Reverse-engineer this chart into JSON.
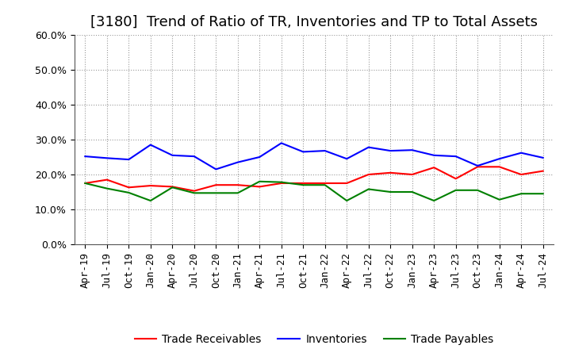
{
  "title": "[3180]  Trend of Ratio of TR, Inventories and TP to Total Assets",
  "x_labels": [
    "Apr-19",
    "Jul-19",
    "Oct-19",
    "Jan-20",
    "Apr-20",
    "Jul-20",
    "Oct-20",
    "Jan-21",
    "Apr-21",
    "Jul-21",
    "Oct-21",
    "Jan-22",
    "Apr-22",
    "Jul-22",
    "Oct-22",
    "Jan-23",
    "Apr-23",
    "Jul-23",
    "Oct-23",
    "Jan-24",
    "Apr-24",
    "Jul-24"
  ],
  "trade_receivables": [
    0.175,
    0.185,
    0.163,
    0.168,
    0.165,
    0.153,
    0.17,
    0.17,
    0.165,
    0.175,
    0.175,
    0.175,
    0.175,
    0.2,
    0.205,
    0.2,
    0.22,
    0.188,
    0.222,
    0.222,
    0.2,
    0.21
  ],
  "inventories": [
    0.252,
    0.247,
    0.243,
    0.285,
    0.255,
    0.252,
    0.215,
    0.235,
    0.25,
    0.29,
    0.265,
    0.268,
    0.245,
    0.278,
    0.268,
    0.27,
    0.255,
    0.252,
    0.225,
    0.245,
    0.262,
    0.248
  ],
  "trade_payables": [
    0.175,
    0.16,
    0.148,
    0.125,
    0.163,
    0.147,
    0.147,
    0.147,
    0.18,
    0.178,
    0.17,
    0.17,
    0.125,
    0.158,
    0.15,
    0.15,
    0.125,
    0.155,
    0.155,
    0.128,
    0.145,
    0.145
  ],
  "tr_color": "#ff0000",
  "inv_color": "#0000ff",
  "tp_color": "#008000",
  "ylim": [
    0.0,
    0.6
  ],
  "yticks": [
    0.0,
    0.1,
    0.2,
    0.3,
    0.4,
    0.5,
    0.6
  ],
  "background_color": "#ffffff",
  "grid_color": "#999999",
  "legend_labels": [
    "Trade Receivables",
    "Inventories",
    "Trade Payables"
  ],
  "title_fontsize": 13,
  "tick_fontsize": 9,
  "legend_fontsize": 10
}
